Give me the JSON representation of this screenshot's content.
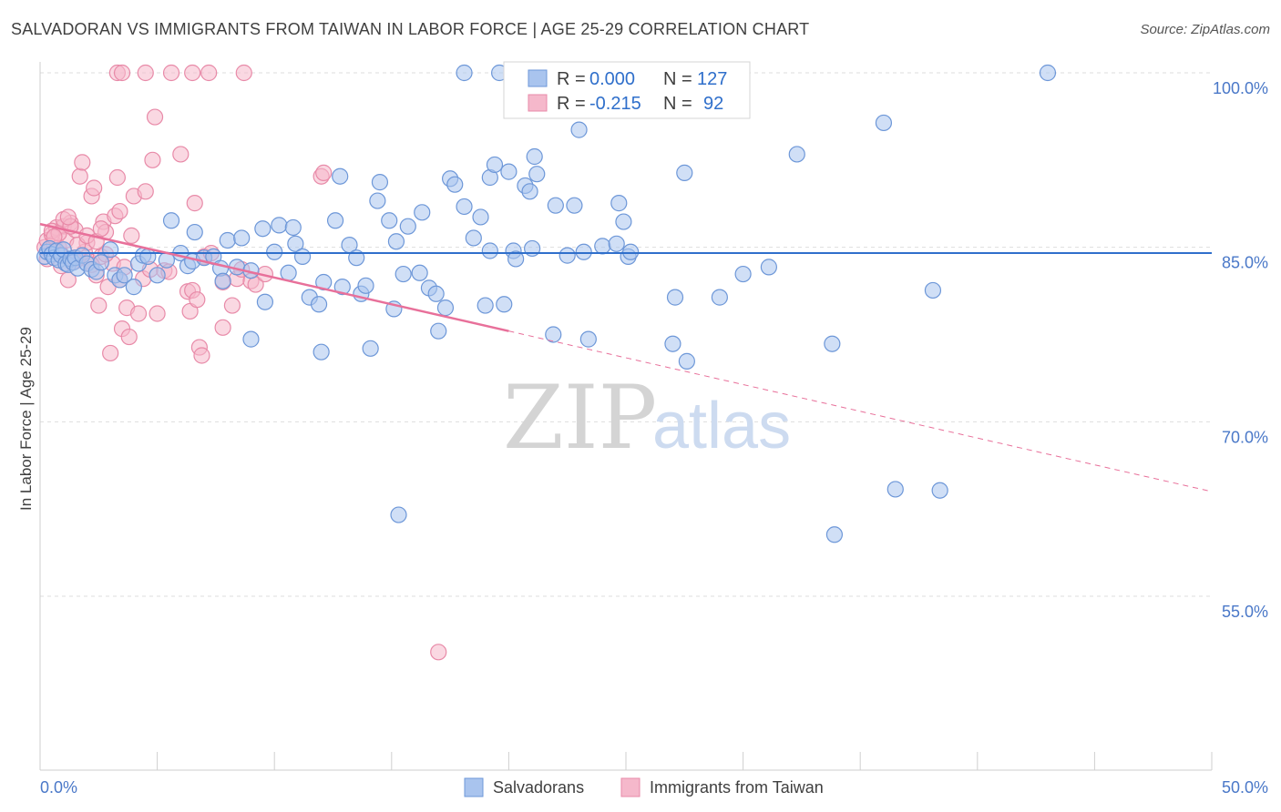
{
  "header": {
    "title": "SALVADORAN VS IMMIGRANTS FROM TAIWAN IN LABOR FORCE | AGE 25-29 CORRELATION CHART",
    "source": "Source: ZipAtlas.com"
  },
  "watermark": {
    "zip": "ZIP",
    "atlas": "atlas"
  },
  "stats": [
    {
      "r_label": "R = ",
      "r_value": "0.000",
      "n_label": "N = ",
      "n_value": "127"
    },
    {
      "r_label": "R = ",
      "r_value": "-0.215",
      "n_label": "N = ",
      "n_value": "92"
    }
  ],
  "chart_data": {
    "type": "scatter",
    "title": "SALVADORAN VS IMMIGRANTS FROM TAIWAN IN LABOR FORCE | AGE 25-29 CORRELATION CHART",
    "xlabel": "",
    "ylabel": "In Labor Force | Age 25-29",
    "xlim": [
      0,
      50
    ],
    "ylim": [
      40,
      102
    ],
    "x_tick_labels": [
      "0.0%",
      "50.0%"
    ],
    "y_ticks": [
      100,
      85,
      70,
      55
    ],
    "y_tick_labels": [
      "100.0%",
      "85.0%",
      "70.0%",
      "55.0%"
    ],
    "grid": true,
    "legend_position": "bottom",
    "colors": {
      "blue_fill": "#a9c4ee",
      "blue_stroke": "#6d97d8",
      "blue_line": "#2f6fcb",
      "pink_fill": "#f5b8cb",
      "pink_stroke": "#e88aa8",
      "pink_line": "#e8709a",
      "grid": "#dddddd",
      "axis_text": "#4a78c8"
    },
    "series": [
      {
        "name": "Salvadorans",
        "color": "#a9c4ee",
        "trend": {
          "x0": 0,
          "y0": 84.5,
          "x1": 50,
          "y1": 84.5
        },
        "points": [
          [
            0.2,
            84.2
          ],
          [
            0.3,
            84.6
          ],
          [
            0.4,
            84.9
          ],
          [
            0.5,
            84.4
          ],
          [
            0.6,
            84.1
          ],
          [
            0.7,
            84.7
          ],
          [
            0.8,
            83.9
          ],
          [
            0.9,
            84.3
          ],
          [
            1.0,
            84.8
          ],
          [
            1.1,
            83.6
          ],
          [
            1.2,
            83.5
          ],
          [
            1.3,
            84.0
          ],
          [
            1.4,
            83.7
          ],
          [
            1.5,
            84.1
          ],
          [
            1.6,
            83.2
          ],
          [
            1.8,
            84.3
          ],
          [
            2.0,
            83.6
          ],
          [
            2.2,
            83.1
          ],
          [
            2.4,
            82.9
          ],
          [
            2.6,
            83.7
          ],
          [
            3.0,
            84.8
          ],
          [
            3.2,
            82.6
          ],
          [
            3.4,
            82.2
          ],
          [
            3.6,
            82.6
          ],
          [
            4.0,
            81.6
          ],
          [
            4.2,
            83.6
          ],
          [
            4.4,
            84.3
          ],
          [
            4.6,
            84.2
          ],
          [
            5.0,
            82.6
          ],
          [
            5.4,
            83.9
          ],
          [
            5.6,
            87.3
          ],
          [
            6.0,
            84.5
          ],
          [
            6.3,
            83.4
          ],
          [
            6.5,
            83.8
          ],
          [
            6.6,
            86.3
          ],
          [
            7.0,
            84.1
          ],
          [
            7.4,
            84.2
          ],
          [
            7.7,
            83.2
          ],
          [
            7.8,
            82.1
          ],
          [
            8.0,
            85.6
          ],
          [
            8.4,
            83.3
          ],
          [
            8.6,
            85.8
          ],
          [
            9.0,
            77.1
          ],
          [
            9.0,
            83.0
          ],
          [
            9.5,
            86.6
          ],
          [
            9.6,
            80.3
          ],
          [
            10.0,
            84.6
          ],
          [
            10.2,
            86.9
          ],
          [
            10.6,
            82.8
          ],
          [
            10.8,
            86.7
          ],
          [
            10.9,
            85.3
          ],
          [
            11.2,
            84.2
          ],
          [
            11.5,
            80.7
          ],
          [
            11.9,
            80.1
          ],
          [
            12.0,
            76.0
          ],
          [
            12.1,
            82.0
          ],
          [
            12.6,
            87.3
          ],
          [
            12.8,
            91.1
          ],
          [
            12.9,
            81.6
          ],
          [
            13.2,
            85.2
          ],
          [
            13.5,
            84.1
          ],
          [
            13.7,
            81.0
          ],
          [
            13.9,
            81.7
          ],
          [
            14.1,
            76.3
          ],
          [
            14.4,
            89.0
          ],
          [
            14.5,
            90.6
          ],
          [
            14.9,
            87.3
          ],
          [
            15.1,
            79.7
          ],
          [
            15.2,
            85.5
          ],
          [
            15.5,
            82.7
          ],
          [
            15.7,
            86.8
          ],
          [
            16.2,
            82.8
          ],
          [
            16.3,
            88.0
          ],
          [
            16.6,
            81.5
          ],
          [
            16.9,
            81.0
          ],
          [
            17.0,
            77.8
          ],
          [
            17.3,
            79.8
          ],
          [
            17.5,
            90.9
          ],
          [
            17.7,
            90.4
          ],
          [
            18.1,
            88.5
          ],
          [
            18.5,
            85.8
          ],
          [
            18.8,
            87.6
          ],
          [
            19.0,
            80.0
          ],
          [
            19.2,
            91.0
          ],
          [
            19.2,
            84.7
          ],
          [
            19.4,
            92.1
          ],
          [
            19.6,
            100.0
          ],
          [
            19.8,
            80.1
          ],
          [
            20.0,
            91.5
          ],
          [
            20.2,
            84.7
          ],
          [
            20.3,
            84.0
          ],
          [
            20.7,
            90.3
          ],
          [
            20.9,
            89.8
          ],
          [
            21.0,
            84.9
          ],
          [
            21.1,
            92.8
          ],
          [
            21.2,
            91.3
          ],
          [
            21.9,
            77.5
          ],
          [
            22.0,
            88.6
          ],
          [
            22.5,
            84.3
          ],
          [
            22.8,
            88.6
          ],
          [
            23.0,
            95.1
          ],
          [
            23.2,
            84.6
          ],
          [
            23.4,
            77.1
          ],
          [
            24.0,
            85.1
          ],
          [
            24.6,
            85.3
          ],
          [
            24.7,
            88.8
          ],
          [
            24.9,
            87.2
          ],
          [
            25.1,
            84.2
          ],
          [
            25.2,
            84.6
          ],
          [
            27.0,
            76.7
          ],
          [
            27.1,
            80.7
          ],
          [
            27.5,
            91.4
          ],
          [
            27.6,
            75.2
          ],
          [
            29.0,
            80.7
          ],
          [
            30.0,
            82.7
          ],
          [
            31.1,
            83.3
          ],
          [
            32.3,
            93.0
          ],
          [
            33.8,
            76.7
          ],
          [
            36.0,
            95.7
          ],
          [
            36.5,
            64.2
          ],
          [
            38.1,
            81.3
          ],
          [
            38.4,
            64.1
          ],
          [
            18.1,
            100.0
          ],
          [
            20.8,
            100.0
          ],
          [
            15.3,
            62.0
          ],
          [
            33.9,
            60.3
          ],
          [
            43.0,
            100.0
          ]
        ]
      },
      {
        "name": "Immigrants from Taiwan",
        "color": "#f5b8cb",
        "trend": {
          "x0": 0,
          "y0": 87.0,
          "x1": 20,
          "y1": 77.8,
          "dash_x1": 50,
          "dash_y1": 64.0
        },
        "points": [
          [
            0.2,
            85.0
          ],
          [
            0.3,
            85.6
          ],
          [
            0.4,
            84.9
          ],
          [
            0.5,
            86.1
          ],
          [
            0.6,
            85.3
          ],
          [
            0.7,
            86.7
          ],
          [
            0.8,
            85.0
          ],
          [
            0.9,
            84.4
          ],
          [
            1.0,
            86.8
          ],
          [
            1.1,
            85.6
          ],
          [
            1.2,
            82.2
          ],
          [
            1.3,
            87.1
          ],
          [
            1.4,
            84.0
          ],
          [
            1.5,
            86.5
          ],
          [
            1.6,
            84.0
          ],
          [
            1.7,
            91.1
          ],
          [
            1.8,
            92.3
          ],
          [
            1.9,
            84.6
          ],
          [
            2.0,
            85.4
          ],
          [
            2.1,
            83.8
          ],
          [
            2.2,
            89.4
          ],
          [
            2.3,
            90.1
          ],
          [
            2.4,
            82.6
          ],
          [
            2.5,
            80.0
          ],
          [
            2.6,
            84.2
          ],
          [
            2.7,
            87.2
          ],
          [
            2.8,
            86.3
          ],
          [
            2.9,
            81.6
          ],
          [
            3.0,
            75.9
          ],
          [
            3.1,
            83.6
          ],
          [
            3.2,
            87.7
          ],
          [
            3.3,
            91.0
          ],
          [
            3.4,
            82.2
          ],
          [
            3.5,
            78.0
          ],
          [
            3.6,
            83.3
          ],
          [
            3.7,
            79.8
          ],
          [
            3.8,
            77.3
          ],
          [
            3.9,
            86.0
          ],
          [
            4.0,
            89.4
          ],
          [
            4.2,
            79.3
          ],
          [
            4.4,
            82.3
          ],
          [
            4.5,
            89.8
          ],
          [
            4.7,
            83.1
          ],
          [
            4.8,
            92.5
          ],
          [
            4.9,
            96.2
          ],
          [
            5.0,
            79.3
          ],
          [
            5.3,
            83.0
          ],
          [
            5.5,
            82.9
          ],
          [
            6.0,
            93.0
          ],
          [
            6.3,
            81.2
          ],
          [
            6.4,
            79.5
          ],
          [
            6.5,
            81.3
          ],
          [
            6.6,
            88.8
          ],
          [
            6.7,
            80.5
          ],
          [
            6.8,
            76.4
          ],
          [
            6.9,
            75.7
          ],
          [
            7.0,
            84.2
          ],
          [
            7.3,
            84.5
          ],
          [
            7.8,
            82.0
          ],
          [
            7.8,
            78.1
          ],
          [
            8.2,
            80.0
          ],
          [
            8.4,
            82.3
          ],
          [
            8.6,
            83.1
          ],
          [
            9.0,
            82.1
          ],
          [
            9.2,
            81.8
          ],
          [
            9.6,
            82.7
          ],
          [
            12.0,
            91.1
          ],
          [
            12.1,
            91.4
          ],
          [
            17.0,
            50.2
          ],
          [
            3.3,
            100.0
          ],
          [
            3.5,
            100.0
          ],
          [
            4.5,
            100.0
          ],
          [
            5.6,
            100.0
          ],
          [
            6.5,
            100.0
          ],
          [
            7.2,
            100.0
          ],
          [
            8.7,
            100.0
          ],
          [
            0.5,
            86.4
          ],
          [
            0.8,
            86.2
          ],
          [
            1.0,
            87.4
          ],
          [
            1.3,
            86.8
          ],
          [
            1.6,
            85.2
          ],
          [
            2.0,
            86.0
          ],
          [
            2.4,
            85.5
          ],
          [
            2.8,
            84.4
          ],
          [
            3.4,
            88.1
          ],
          [
            0.3,
            84.0
          ],
          [
            0.6,
            85.9
          ],
          [
            0.9,
            83.4
          ],
          [
            1.2,
            87.6
          ],
          [
            1.5,
            83.8
          ],
          [
            2.2,
            83.5
          ],
          [
            2.6,
            86.6
          ]
        ]
      }
    ]
  }
}
